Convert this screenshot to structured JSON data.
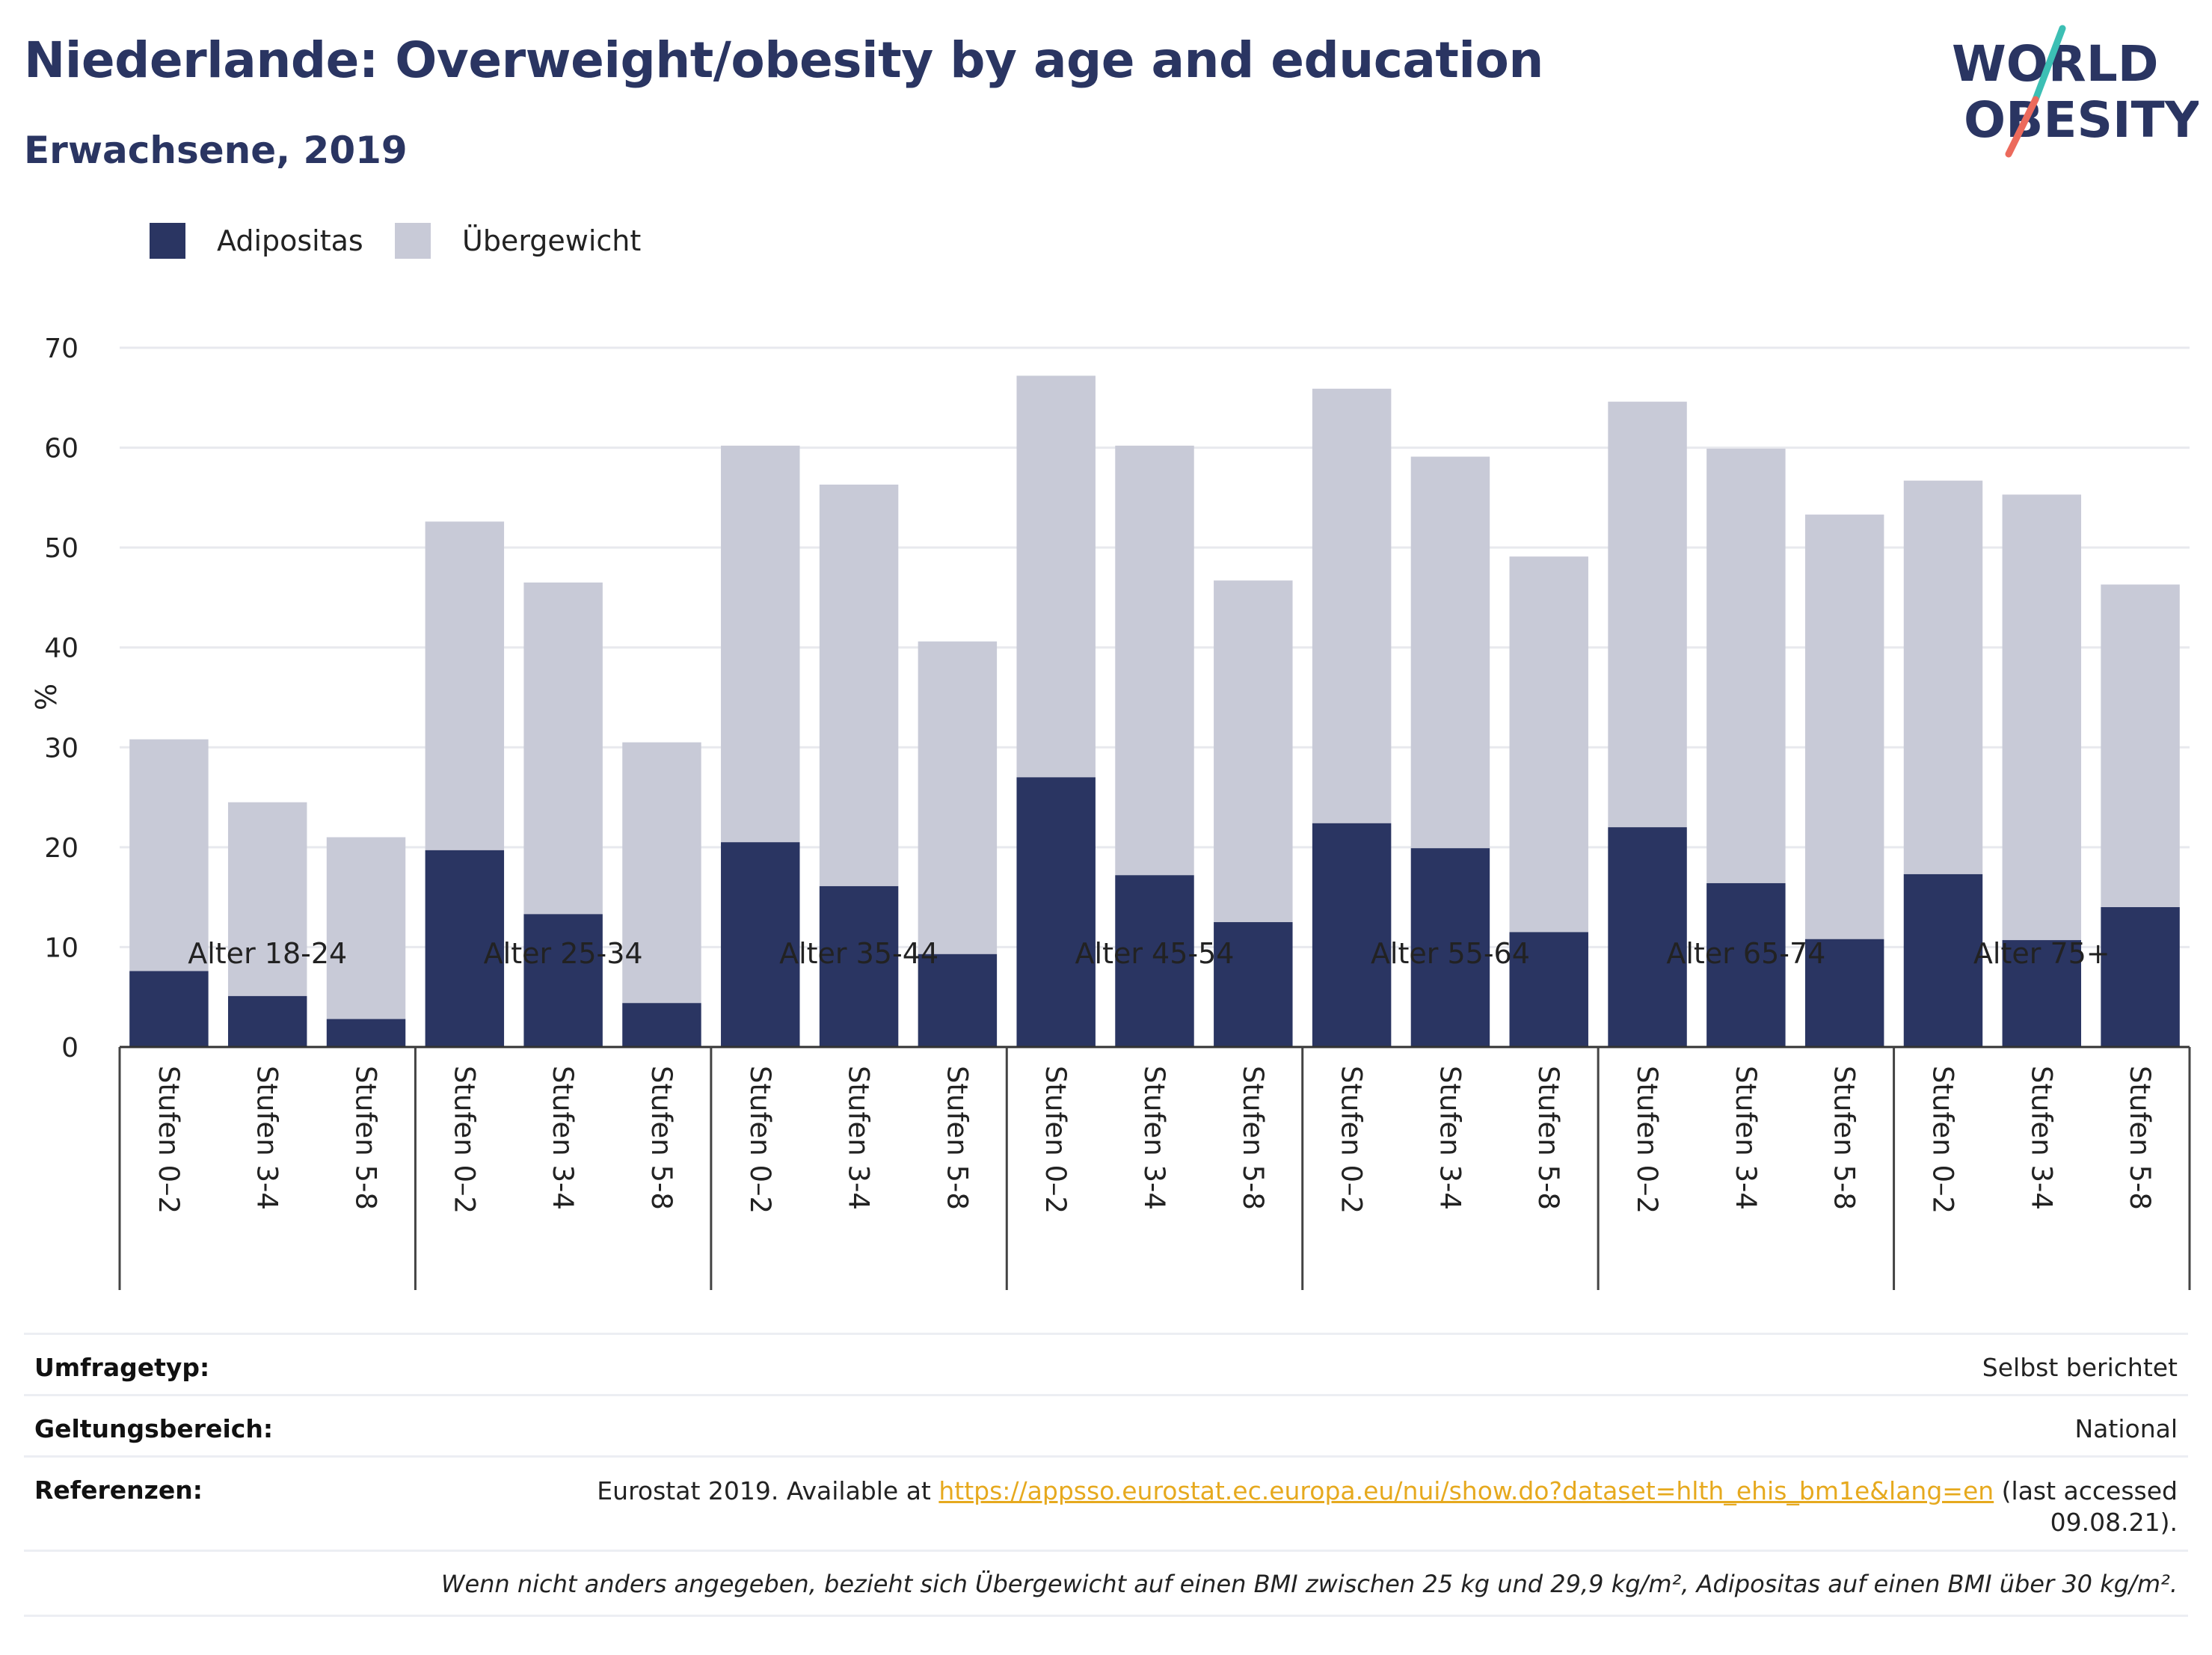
{
  "title": "Niederlande: Overweight/obesity by age and education",
  "subtitle": "Erwachsene, 2019",
  "logo": {
    "line1": "WORLD",
    "line2": "OBESITY"
  },
  "colors": {
    "obesity": "#2a3562",
    "overweight": "#c8cad7",
    "title": "#2a3562",
    "link": "#e6a91e"
  },
  "legend": [
    {
      "label": "Adipositas",
      "color": "#2a3562"
    },
    {
      "label": "Übergewicht",
      "color": "#c8cad7"
    }
  ],
  "chart_data": {
    "type": "bar",
    "stacked": true,
    "ylabel": "%",
    "ylim": [
      0,
      70
    ],
    "yticks": [
      0,
      10,
      20,
      30,
      40,
      50,
      60,
      70
    ],
    "grid": true,
    "legend_position": "top-left",
    "groups": [
      "Alter 18-24",
      "Alter 25-34",
      "Alter 35-44",
      "Alter 45-54",
      "Alter 55-64",
      "Alter 65-74",
      "Alter 75+"
    ],
    "subcategories": [
      "Stufen 0–2",
      "Stufen 3-4",
      "Stufen 5-8"
    ],
    "series": [
      {
        "name": "Adipositas",
        "values": [
          7.6,
          5.1,
          2.8,
          19.7,
          13.3,
          4.4,
          20.5,
          16.1,
          9.3,
          27.0,
          17.2,
          12.5,
          22.4,
          19.9,
          11.5,
          22.0,
          16.4,
          10.8,
          17.3,
          10.7,
          14.0
        ]
      },
      {
        "name": "Übergewicht",
        "values": [
          23.2,
          19.4,
          18.2,
          32.9,
          33.2,
          26.1,
          39.7,
          40.2,
          31.3,
          40.2,
          43.0,
          34.2,
          43.5,
          39.2,
          37.6,
          42.6,
          43.5,
          42.5,
          39.4,
          44.6,
          32.3
        ]
      }
    ],
    "totals": [
      30.8,
      24.5,
      21.0,
      52.6,
      46.5,
      30.5,
      60.2,
      56.3,
      40.6,
      67.2,
      60.2,
      46.7,
      65.9,
      59.1,
      49.1,
      64.6,
      59.9,
      53.3,
      56.7,
      55.3,
      46.3
    ]
  },
  "info": {
    "survey_type_label": "Umfragetyp:",
    "survey_type_value": "Selbst berichtet",
    "scope_label": "Geltungsbereich:",
    "scope_value": "National",
    "references_label": "Referenzen:",
    "references_prefix": "Eurostat 2019. Available at ",
    "references_link": "https://appsso.eurostat.ec.europa.eu/nui/show.do?dataset=hlth_ehis_bm1e&lang=en",
    "references_suffix": " (last accessed",
    "references_date": "09.08.21).",
    "note": "Wenn nicht anders angegeben, bezieht sich Übergewicht auf einen BMI zwischen 25 kg und 29,9 kg/m², Adipositas auf einen BMI über 30 kg/m²."
  }
}
